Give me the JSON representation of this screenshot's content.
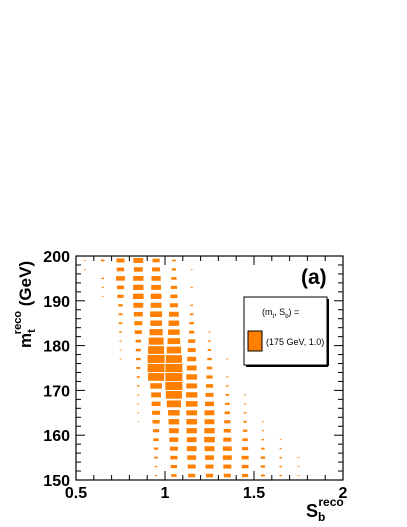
{
  "chart_data": {
    "type": "heatmap",
    "panel_label": "(a)",
    "xlabel": {
      "main": "S",
      "sub": "b",
      "sup": "reco"
    },
    "ylabel": {
      "main": "m",
      "sub": "t",
      "sup": "reco",
      "unit": " (GeV)"
    },
    "xlim": [
      0.5,
      2.0
    ],
    "ylim": [
      150,
      200
    ],
    "x_ticks": [
      "0.5",
      "1",
      "1.5",
      "2"
    ],
    "y_ticks": [
      "150",
      "160",
      "170",
      "180",
      "190",
      "200"
    ],
    "color": "#ff7f00",
    "edge_color": "#ffffff",
    "legend": {
      "header": {
        "open": "(m",
        "sub1": "t",
        "comma": ", S",
        "sub2": "b",
        "close": ") ="
      },
      "entry": "(175 GeV, 1.0)"
    },
    "bins": [
      [
        0.55,
        199,
        0.1
      ],
      [
        0.55,
        197,
        0.1
      ],
      [
        0.65,
        199,
        0.2
      ],
      [
        0.65,
        195,
        0.15
      ],
      [
        0.65,
        193,
        0.12
      ],
      [
        0.65,
        191,
        0.1
      ],
      [
        0.75,
        199,
        0.45
      ],
      [
        0.75,
        197,
        0.42
      ],
      [
        0.75,
        195,
        0.5
      ],
      [
        0.75,
        193,
        0.4
      ],
      [
        0.75,
        191,
        0.35
      ],
      [
        0.75,
        189,
        0.25
      ],
      [
        0.75,
        187,
        0.22
      ],
      [
        0.75,
        185,
        0.2
      ],
      [
        0.75,
        183,
        0.15
      ],
      [
        0.75,
        181,
        0.12
      ],
      [
        0.75,
        179,
        0.1
      ],
      [
        0.75,
        177,
        0.1
      ],
      [
        0.85,
        199,
        0.55
      ],
      [
        0.85,
        197,
        0.5
      ],
      [
        0.85,
        195,
        0.62
      ],
      [
        0.85,
        193,
        0.58
      ],
      [
        0.85,
        191,
        0.6
      ],
      [
        0.85,
        189,
        0.55
      ],
      [
        0.85,
        187,
        0.5
      ],
      [
        0.85,
        185,
        0.45
      ],
      [
        0.85,
        183,
        0.4
      ],
      [
        0.85,
        181,
        0.3
      ],
      [
        0.85,
        179,
        0.28
      ],
      [
        0.85,
        177,
        0.25
      ],
      [
        0.85,
        175,
        0.22
      ],
      [
        0.85,
        173,
        0.18
      ],
      [
        0.85,
        171,
        0.15
      ],
      [
        0.85,
        169,
        0.12
      ],
      [
        0.85,
        167,
        0.1
      ],
      [
        0.85,
        165,
        0.1
      ],
      [
        0.85,
        163,
        0.08
      ],
      [
        0.95,
        199,
        0.4
      ],
      [
        0.95,
        197,
        0.45
      ],
      [
        0.95,
        195,
        0.52
      ],
      [
        0.95,
        193,
        0.55
      ],
      [
        0.95,
        191,
        0.6
      ],
      [
        0.95,
        189,
        0.65
      ],
      [
        0.95,
        187,
        0.72
      ],
      [
        0.95,
        185,
        0.7
      ],
      [
        0.95,
        183,
        0.78
      ],
      [
        0.95,
        181,
        0.88
      ],
      [
        0.95,
        179,
        0.95
      ],
      [
        0.95,
        177,
        1.0
      ],
      [
        0.95,
        175,
        1.0
      ],
      [
        0.95,
        173,
        0.95
      ],
      [
        0.95,
        171,
        0.7
      ],
      [
        0.95,
        169,
        0.55
      ],
      [
        0.95,
        167,
        0.5
      ],
      [
        0.95,
        165,
        0.45
      ],
      [
        0.95,
        163,
        0.4
      ],
      [
        0.95,
        161,
        0.35
      ],
      [
        0.95,
        159,
        0.3
      ],
      [
        0.95,
        157,
        0.25
      ],
      [
        0.95,
        155,
        0.2
      ],
      [
        0.95,
        153,
        0.15
      ],
      [
        0.95,
        151,
        0.12
      ],
      [
        1.05,
        199,
        0.2
      ],
      [
        1.05,
        197,
        0.25
      ],
      [
        1.05,
        195,
        0.3
      ],
      [
        1.05,
        193,
        0.35
      ],
      [
        1.05,
        191,
        0.4
      ],
      [
        1.05,
        189,
        0.45
      ],
      [
        1.05,
        187,
        0.55
      ],
      [
        1.05,
        185,
        0.6
      ],
      [
        1.05,
        183,
        0.7
      ],
      [
        1.05,
        181,
        0.75
      ],
      [
        1.05,
        179,
        0.85
      ],
      [
        1.05,
        177,
        0.95
      ],
      [
        1.05,
        175,
        1.0
      ],
      [
        1.05,
        173,
        1.0
      ],
      [
        1.05,
        171,
        1.0
      ],
      [
        1.05,
        169,
        0.95
      ],
      [
        1.05,
        167,
        0.85
      ],
      [
        1.05,
        165,
        0.7
      ],
      [
        1.05,
        163,
        0.6
      ],
      [
        1.05,
        161,
        0.55
      ],
      [
        1.05,
        159,
        0.5
      ],
      [
        1.05,
        157,
        0.45
      ],
      [
        1.05,
        155,
        0.4
      ],
      [
        1.05,
        153,
        0.35
      ],
      [
        1.05,
        151,
        0.3
      ],
      [
        1.15,
        197,
        0.1
      ],
      [
        1.15,
        193,
        0.12
      ],
      [
        1.15,
        189,
        0.15
      ],
      [
        1.15,
        187,
        0.2
      ],
      [
        1.15,
        185,
        0.25
      ],
      [
        1.15,
        183,
        0.3
      ],
      [
        1.15,
        181,
        0.4
      ],
      [
        1.15,
        179,
        0.45
      ],
      [
        1.15,
        177,
        0.5
      ],
      [
        1.15,
        175,
        0.55
      ],
      [
        1.15,
        173,
        0.6
      ],
      [
        1.15,
        171,
        0.65
      ],
      [
        1.15,
        169,
        0.68
      ],
      [
        1.15,
        167,
        0.7
      ],
      [
        1.15,
        165,
        0.65
      ],
      [
        1.15,
        163,
        0.6
      ],
      [
        1.15,
        161,
        0.58
      ],
      [
        1.15,
        159,
        0.55
      ],
      [
        1.15,
        157,
        0.55
      ],
      [
        1.15,
        155,
        0.5
      ],
      [
        1.15,
        153,
        0.45
      ],
      [
        1.15,
        151,
        0.4
      ],
      [
        1.25,
        183,
        0.12
      ],
      [
        1.25,
        181,
        0.15
      ],
      [
        1.25,
        179,
        0.2
      ],
      [
        1.25,
        177,
        0.25
      ],
      [
        1.25,
        175,
        0.3
      ],
      [
        1.25,
        173,
        0.35
      ],
      [
        1.25,
        171,
        0.4
      ],
      [
        1.25,
        169,
        0.45
      ],
      [
        1.25,
        167,
        0.5
      ],
      [
        1.25,
        165,
        0.55
      ],
      [
        1.25,
        163,
        0.55
      ],
      [
        1.25,
        161,
        0.58
      ],
      [
        1.25,
        159,
        0.6
      ],
      [
        1.25,
        157,
        0.55
      ],
      [
        1.25,
        155,
        0.5
      ],
      [
        1.25,
        153,
        0.45
      ],
      [
        1.25,
        151,
        0.4
      ],
      [
        1.35,
        177,
        0.1
      ],
      [
        1.35,
        173,
        0.12
      ],
      [
        1.35,
        171,
        0.15
      ],
      [
        1.35,
        169,
        0.2
      ],
      [
        1.35,
        167,
        0.25
      ],
      [
        1.35,
        165,
        0.3
      ],
      [
        1.35,
        163,
        0.35
      ],
      [
        1.35,
        161,
        0.4
      ],
      [
        1.35,
        159,
        0.45
      ],
      [
        1.35,
        157,
        0.5
      ],
      [
        1.35,
        155,
        0.5
      ],
      [
        1.35,
        153,
        0.45
      ],
      [
        1.35,
        151,
        0.4
      ],
      [
        1.45,
        169,
        0.1
      ],
      [
        1.45,
        167,
        0.12
      ],
      [
        1.45,
        165,
        0.15
      ],
      [
        1.45,
        163,
        0.2
      ],
      [
        1.45,
        161,
        0.25
      ],
      [
        1.45,
        159,
        0.3
      ],
      [
        1.45,
        157,
        0.35
      ],
      [
        1.45,
        155,
        0.4
      ],
      [
        1.45,
        153,
        0.38
      ],
      [
        1.45,
        151,
        0.35
      ],
      [
        1.55,
        163,
        0.1
      ],
      [
        1.55,
        161,
        0.12
      ],
      [
        1.55,
        159,
        0.15
      ],
      [
        1.55,
        157,
        0.2
      ],
      [
        1.55,
        155,
        0.25
      ],
      [
        1.55,
        153,
        0.25
      ],
      [
        1.55,
        151,
        0.22
      ],
      [
        1.65,
        159,
        0.1
      ],
      [
        1.65,
        157,
        0.12
      ],
      [
        1.65,
        155,
        0.15
      ],
      [
        1.65,
        153,
        0.15
      ],
      [
        1.65,
        151,
        0.15
      ],
      [
        1.75,
        155,
        0.1
      ],
      [
        1.75,
        153,
        0.1
      ],
      [
        1.75,
        151,
        0.1
      ]
    ]
  }
}
